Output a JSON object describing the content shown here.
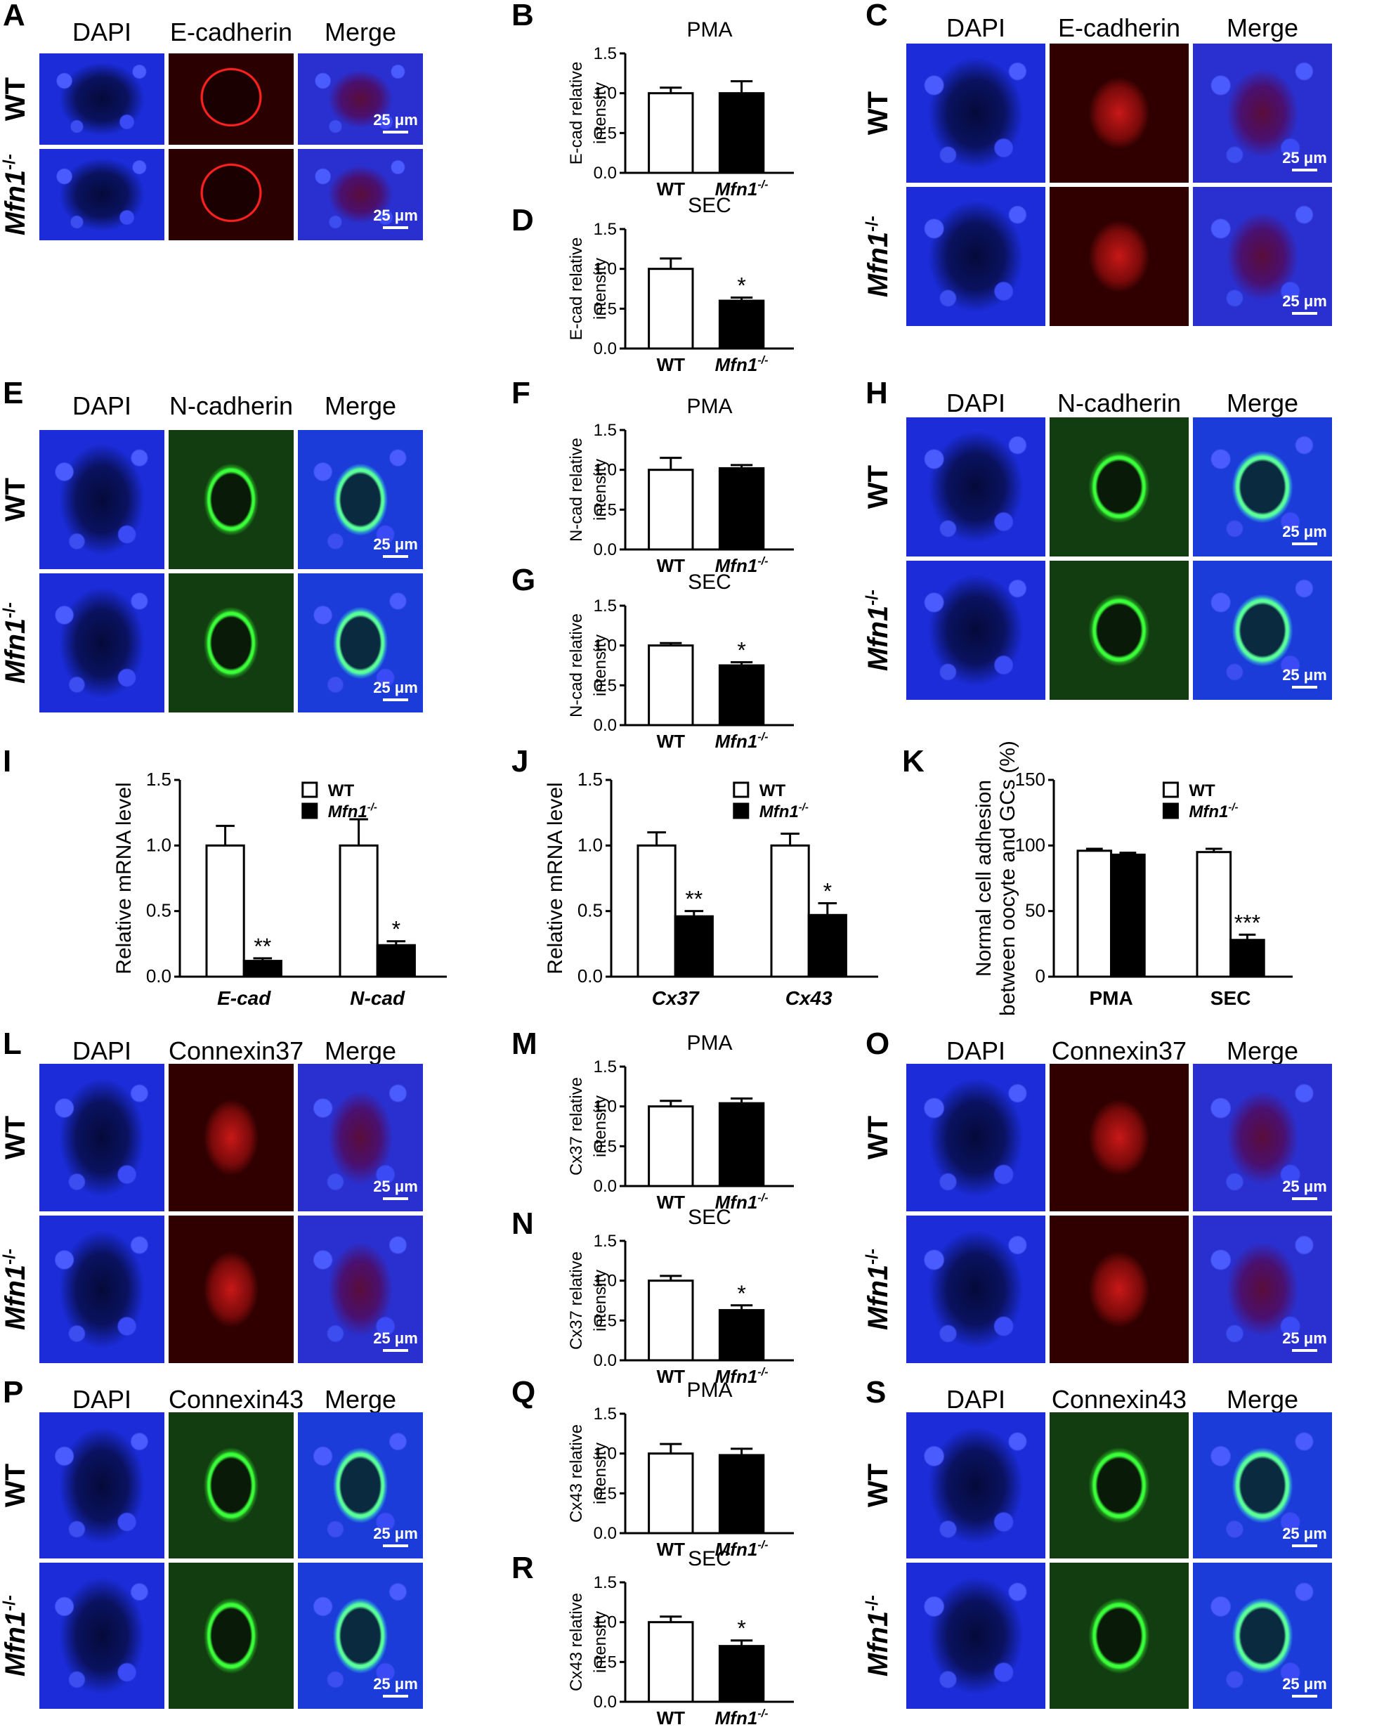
{
  "colors": {
    "blue": "#1b2cd8",
    "red": "#a6111a",
    "green": "#2fb52a"
  },
  "panels": {
    "A": "A",
    "B": "B",
    "C": "C",
    "D": "D",
    "E": "E",
    "F": "F",
    "G": "G",
    "H": "H",
    "I": "I",
    "J": "J",
    "K": "K",
    "L": "L",
    "M": "M",
    "N": "N",
    "O": "O",
    "P": "P",
    "Q": "Q",
    "R": "R",
    "S": "S"
  },
  "headers": {
    "dapi": "DAPI",
    "ecad": "E-cadherin",
    "ncad": "N-cadherin",
    "cx37": "Connexin37",
    "cx43": "Connexin43",
    "merge": "Merge"
  },
  "rows": {
    "wt": "WT",
    "mfn_base": "Mfn1",
    "mfn_sup": "-/-"
  },
  "scale_bar": "25 μm",
  "chart_data": [
    {
      "panel": "B",
      "type": "bar",
      "title": "PMA",
      "ylabel": "E-cad relative intensity",
      "categories": [
        "WT",
        "Mfn1-/-"
      ],
      "values": [
        1.0,
        1.0
      ],
      "errors": [
        0.07,
        0.15
      ],
      "ylim": [
        0,
        1.5
      ],
      "yticks": [
        "0.0",
        "0.5",
        "1.0",
        "1.5"
      ],
      "sig": [
        "",
        ""
      ]
    },
    {
      "panel": "D",
      "type": "bar",
      "title": "SEC",
      "ylabel": "E-cad relative intensity",
      "categories": [
        "WT",
        "Mfn1-/-"
      ],
      "values": [
        1.0,
        0.6
      ],
      "errors": [
        0.13,
        0.04
      ],
      "ylim": [
        0,
        1.5
      ],
      "yticks": [
        "0.0",
        "0.5",
        "1.0",
        "1.5"
      ],
      "sig": [
        "",
        "*"
      ]
    },
    {
      "panel": "F",
      "type": "bar",
      "title": "PMA",
      "ylabel": "N-cad relative intensity",
      "categories": [
        "WT",
        "Mfn1-/-"
      ],
      "values": [
        1.0,
        1.02
      ],
      "errors": [
        0.15,
        0.04
      ],
      "ylim": [
        0,
        1.5
      ],
      "yticks": [
        "0.0",
        "0.5",
        "1.0",
        "1.5"
      ],
      "sig": [
        "",
        ""
      ]
    },
    {
      "panel": "G",
      "type": "bar",
      "title": "SEC",
      "ylabel": "N-cad relative intensity",
      "categories": [
        "WT",
        "Mfn1-/-"
      ],
      "values": [
        1.0,
        0.75
      ],
      "errors": [
        0.03,
        0.04
      ],
      "ylim": [
        0,
        1.5
      ],
      "yticks": [
        "0.0",
        "0.5",
        "1.0",
        "1.5"
      ],
      "sig": [
        "",
        "*"
      ]
    },
    {
      "panel": "M",
      "type": "bar",
      "title": "PMA",
      "ylabel": "Cx37 relative intensity",
      "categories": [
        "WT",
        "Mfn1-/-"
      ],
      "values": [
        1.0,
        1.04
      ],
      "errors": [
        0.07,
        0.06
      ],
      "ylim": [
        0,
        1.5
      ],
      "yticks": [
        "0.0",
        "0.5",
        "1.0",
        "1.5"
      ],
      "sig": [
        "",
        ""
      ]
    },
    {
      "panel": "N",
      "type": "bar",
      "title": "SEC",
      "ylabel": "Cx37 relative intensity",
      "categories": [
        "WT",
        "Mfn1-/-"
      ],
      "values": [
        1.0,
        0.63
      ],
      "errors": [
        0.06,
        0.06
      ],
      "ylim": [
        0,
        1.5
      ],
      "yticks": [
        "0.0",
        "0.5",
        "1.0",
        "1.5"
      ],
      "sig": [
        "",
        "*"
      ]
    },
    {
      "panel": "Q",
      "type": "bar",
      "title": "PMA",
      "ylabel": "Cx43 relative intensity",
      "categories": [
        "WT",
        "Mfn1-/-"
      ],
      "values": [
        1.0,
        0.98
      ],
      "errors": [
        0.12,
        0.08
      ],
      "ylim": [
        0,
        1.5
      ],
      "yticks": [
        "0.0",
        "0.5",
        "1.0",
        "1.5"
      ],
      "sig": [
        "",
        ""
      ]
    },
    {
      "panel": "R",
      "type": "bar",
      "title": "SEC",
      "ylabel": "Cx43 relative intensity",
      "categories": [
        "WT",
        "Mfn1-/-"
      ],
      "values": [
        1.0,
        0.7
      ],
      "errors": [
        0.07,
        0.07
      ],
      "ylim": [
        0,
        1.5
      ],
      "yticks": [
        "0.0",
        "0.5",
        "1.0",
        "1.5"
      ],
      "sig": [
        "",
        "*"
      ]
    },
    {
      "panel": "I",
      "type": "bar",
      "ylabel": "Relative mRNA level",
      "categories": [
        "E-cad",
        "N-cad"
      ],
      "series": [
        {
          "name": "WT",
          "values": [
            1.0,
            1.0
          ],
          "errors": [
            0.15,
            0.2
          ]
        },
        {
          "name": "Mfn1-/-",
          "values": [
            0.12,
            0.24
          ],
          "errors": [
            0.02,
            0.03
          ]
        }
      ],
      "sig": [
        [
          "",
          "**"
        ],
        [
          "",
          "*"
        ]
      ],
      "ylim": [
        0,
        1.5
      ],
      "yticks": [
        "0.0",
        "0.5",
        "1.0",
        "1.5"
      ],
      "legend": "top-right"
    },
    {
      "panel": "J",
      "type": "bar",
      "ylabel": "Relative mRNA level",
      "categories": [
        "Cx37",
        "Cx43"
      ],
      "series": [
        {
          "name": "WT",
          "values": [
            1.0,
            1.0
          ],
          "errors": [
            0.1,
            0.09
          ]
        },
        {
          "name": "Mfn1-/-",
          "values": [
            0.46,
            0.47
          ],
          "errors": [
            0.04,
            0.09
          ]
        }
      ],
      "sig": [
        [
          "",
          "**"
        ],
        [
          "",
          "*"
        ]
      ],
      "ylim": [
        0,
        1.5
      ],
      "yticks": [
        "0.0",
        "0.5",
        "1.0",
        "1.5"
      ],
      "legend": "top-right"
    },
    {
      "panel": "K",
      "type": "bar",
      "ylabel": "Normal cell adhesion between oocyte and GCs (%)",
      "ylabel_lines": [
        "Normal cell adhesion",
        "between oocyte and GCs (%)"
      ],
      "categories": [
        "PMA",
        "SEC"
      ],
      "series": [
        {
          "name": "WT",
          "values": [
            96,
            95
          ],
          "errors": [
            1.5,
            2.5
          ]
        },
        {
          "name": "Mfn1-/-",
          "values": [
            93,
            28
          ],
          "errors": [
            1.5,
            4
          ]
        }
      ],
      "sig": [
        [
          "",
          ""
        ],
        [
          "",
          "***"
        ]
      ],
      "ylim": [
        0,
        150
      ],
      "yticks": [
        "0",
        "50",
        "100",
        "150"
      ],
      "legend": "top-right"
    }
  ]
}
